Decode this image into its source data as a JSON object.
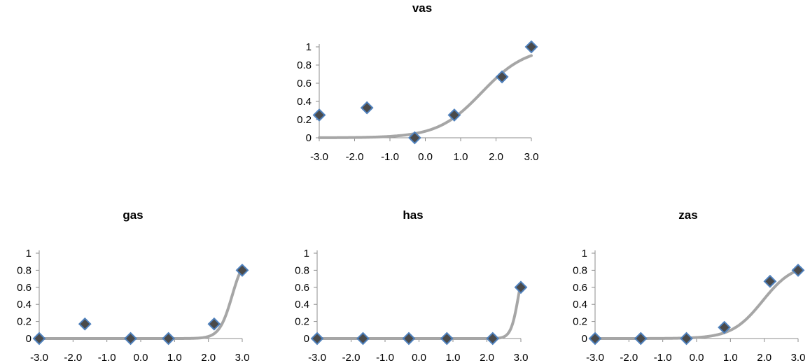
{
  "chart_data": [
    {
      "type": "scatter",
      "title": "vas",
      "xlim": [
        -3,
        3
      ],
      "ylim": [
        0,
        1
      ],
      "x_ticks": [
        "-3.0",
        "-2.0",
        "-1.0",
        "0.0",
        "1.0",
        "2.0",
        "3.0"
      ],
      "y_ticks": [
        "0",
        "0.2",
        "0.4",
        "0.6",
        "0.8",
        "1"
      ],
      "points": {
        "x": [
          -3.0,
          -1.65,
          -0.3,
          0.82,
          2.17,
          3.0
        ],
        "y": [
          0.25,
          0.33,
          0.0,
          0.25,
          0.67,
          1.0
        ]
      },
      "curve": {
        "kind": "logistic-fit",
        "a": 1.6,
        "b": 1.6,
        "c": 1.0
      }
    },
    {
      "type": "scatter",
      "title": "gas",
      "xlim": [
        -3,
        3
      ],
      "ylim": [
        0,
        1
      ],
      "x_ticks": [
        "-3.0",
        "-2.0",
        "-1.0",
        "0.0",
        "1.0",
        "2.0",
        "3.0"
      ],
      "y_ticks": [
        "0",
        "0.2",
        "0.4",
        "0.6",
        "0.8",
        "1"
      ],
      "points": {
        "x": [
          -3.0,
          -1.65,
          -0.3,
          0.82,
          2.17,
          3.0
        ],
        "y": [
          0.0,
          0.17,
          0.0,
          0.0,
          0.17,
          0.8
        ]
      },
      "curve": {
        "kind": "logistic-fit",
        "a": 5.3,
        "b": 2.7,
        "c": 1.0
      }
    },
    {
      "type": "scatter",
      "title": "has",
      "xlim": [
        -3,
        3
      ],
      "ylim": [
        0,
        1
      ],
      "x_ticks": [
        "-3.0",
        "-2.0",
        "-1.0",
        "0.0",
        "1.0",
        "2.0",
        "3.0"
      ],
      "y_ticks": [
        "0",
        "0.2",
        "0.4",
        "0.6",
        "0.8",
        "1"
      ],
      "points": {
        "x": [
          -3.0,
          -1.65,
          -0.3,
          0.82,
          2.17,
          3.0
        ],
        "y": [
          0.0,
          0.0,
          0.0,
          0.0,
          0.0,
          0.6
        ]
      },
      "curve": {
        "kind": "logistic-fit",
        "a": 9.0,
        "b": 2.93,
        "c": 1.0
      }
    },
    {
      "type": "scatter",
      "title": "zas",
      "xlim": [
        -3,
        3
      ],
      "ylim": [
        0,
        1
      ],
      "x_ticks": [
        "-3.0",
        "-2.0",
        "-1.0",
        "0.0",
        "1.0",
        "2.0",
        "3.0"
      ],
      "y_ticks": [
        "0",
        "0.2",
        "0.4",
        "0.6",
        "0.8",
        "1"
      ],
      "points": {
        "x": [
          -3.0,
          -1.65,
          -0.3,
          0.82,
          2.17,
          3.0
        ],
        "y": [
          0.0,
          0.0,
          0.0,
          0.13,
          0.67,
          0.8
        ]
      },
      "curve": {
        "kind": "logistic-fit",
        "a": 2.2,
        "b": 1.95,
        "c": 0.88
      }
    }
  ]
}
